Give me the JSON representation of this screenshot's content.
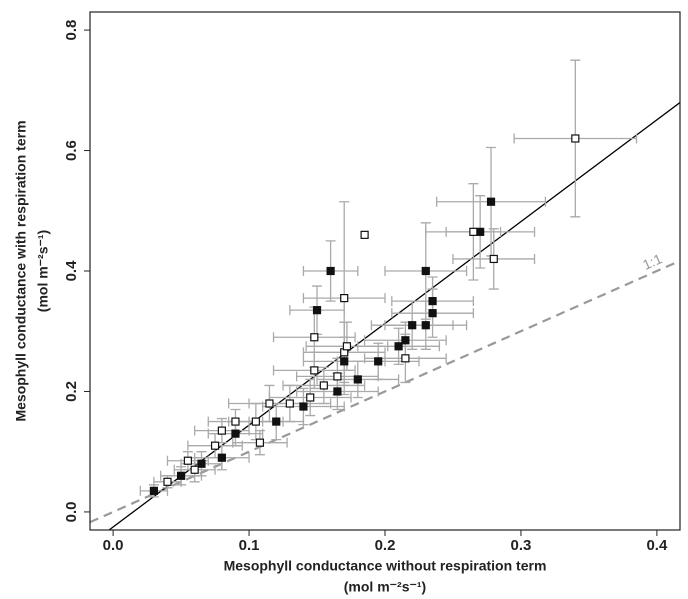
{
  "chart_data": {
    "type": "scatter",
    "x_label": "Mesophyll conductance without respiration term",
    "x_unit": "(mol m⁻²s⁻¹)",
    "y_label": "Mesophyll conductance with respiration term",
    "y_unit": "(mol m⁻²s⁻¹)",
    "xlim": [
      -0.017,
      0.417
    ],
    "ylim": [
      -0.03,
      0.83
    ],
    "xticks": [
      {
        "value": 0,
        "label": "0.0"
      },
      0.1,
      0.2,
      0.3,
      0.4
    ],
    "yticks": [
      {
        "value": 0,
        "label": "0.0"
      },
      0.2,
      0.4,
      0.6,
      0.8
    ],
    "errorbar_color": "#aaaaaa",
    "reference_lines": [
      {
        "label": "1:1",
        "slope": 1,
        "intercept": 0,
        "color": "#999999",
        "dashed": true
      },
      {
        "slope": 1.69,
        "intercept": -0.025,
        "color": "#000000",
        "dashed": false
      }
    ],
    "series": [
      {
        "marker": "filled",
        "color": "#111111",
        "x": [
          0.03,
          0.05,
          0.065,
          0.08,
          0.09,
          0.12,
          0.14,
          0.15,
          0.16,
          0.165,
          0.17,
          0.18,
          0.195,
          0.21,
          0.215,
          0.22,
          0.23,
          0.23,
          0.235,
          0.235,
          0.27,
          0.278
        ],
        "y": [
          0.035,
          0.06,
          0.08,
          0.09,
          0.13,
          0.15,
          0.175,
          0.335,
          0.4,
          0.2,
          0.25,
          0.22,
          0.25,
          0.275,
          0.285,
          0.31,
          0.4,
          0.31,
          0.33,
          0.35,
          0.465,
          0.515
        ],
        "xerr": [
          0.01,
          0.015,
          0.015,
          0.02,
          0.02,
          0.02,
          0.03,
          0.02,
          0.02,
          0.03,
          0.03,
          0.03,
          0.03,
          0.03,
          0.03,
          0.03,
          0.03,
          0.03,
          0.03,
          0.03,
          0.04,
          0.04
        ],
        "yerr": [
          0.01,
          0.015,
          0.02,
          0.02,
          0.02,
          0.03,
          0.03,
          0.04,
          0.05,
          0.03,
          0.04,
          0.03,
          0.03,
          0.03,
          0.03,
          0.04,
          0.08,
          0.04,
          0.04,
          0.04,
          0.06,
          0.09
        ]
      },
      {
        "marker": "open",
        "color": "#111111",
        "x": [
          0.04,
          0.055,
          0.06,
          0.075,
          0.08,
          0.09,
          0.105,
          0.108,
          0.115,
          0.13,
          0.145,
          0.148,
          0.148,
          0.155,
          0.165,
          0.17,
          0.17,
          0.172,
          0.185,
          0.215,
          0.265,
          0.28,
          0.34
        ],
        "y": [
          0.05,
          0.085,
          0.07,
          0.11,
          0.135,
          0.15,
          0.15,
          0.115,
          0.18,
          0.18,
          0.19,
          0.235,
          0.29,
          0.21,
          0.225,
          0.265,
          0.355,
          0.275,
          0.46,
          0.255,
          0.465,
          0.42,
          0.62
        ],
        "xerr": [
          0.01,
          0.015,
          0.015,
          0.02,
          0.02,
          0.02,
          0.02,
          0.02,
          0.03,
          0.03,
          0.03,
          0.03,
          0.03,
          0.03,
          0.03,
          0.03,
          0.03,
          0.03,
          0,
          0.03,
          0.02,
          0.03,
          0.045
        ],
        "yerr": [
          0.01,
          0.015,
          0.02,
          0.02,
          0.02,
          0.02,
          0.03,
          0.02,
          0.03,
          0.03,
          0.03,
          0.03,
          0.05,
          0.03,
          0.03,
          0.05,
          0.16,
          0.04,
          0,
          0.04,
          0.08,
          0.05,
          0.13
        ]
      }
    ]
  }
}
